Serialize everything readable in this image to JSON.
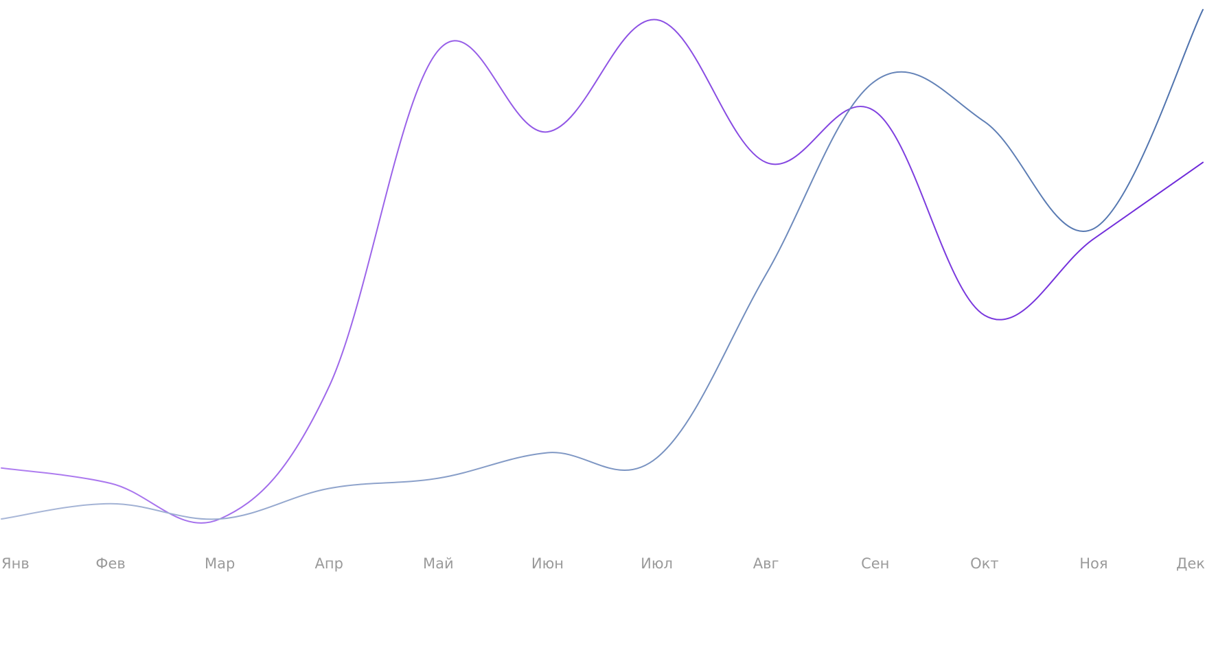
{
  "chart_data": {
    "type": "line",
    "categories": [
      "Янв",
      "Фев",
      "Мар",
      "Апр",
      "Май",
      "Июн",
      "Июл",
      "Авг",
      "Сен",
      "Окт",
      "Ноя",
      "Дек"
    ],
    "ylim": [
      0,
      100
    ],
    "grid": false,
    "legend": "bottom",
    "series": [
      {
        "color": "#7c3aed",
        "gradient": [
          "#b07ff0",
          "#6d28d9"
        ],
        "values": [
          10,
          7,
          0,
          26,
          92,
          76,
          98,
          70,
          80,
          40,
          55,
          70
        ]
      },
      {
        "color": "#5a7fb5",
        "gradient": [
          "#aab8d8",
          "#4e72ad"
        ],
        "values": [
          0,
          3,
          0,
          6,
          8,
          13,
          12,
          48,
          86,
          78,
          57,
          100
        ]
      }
    ]
  }
}
